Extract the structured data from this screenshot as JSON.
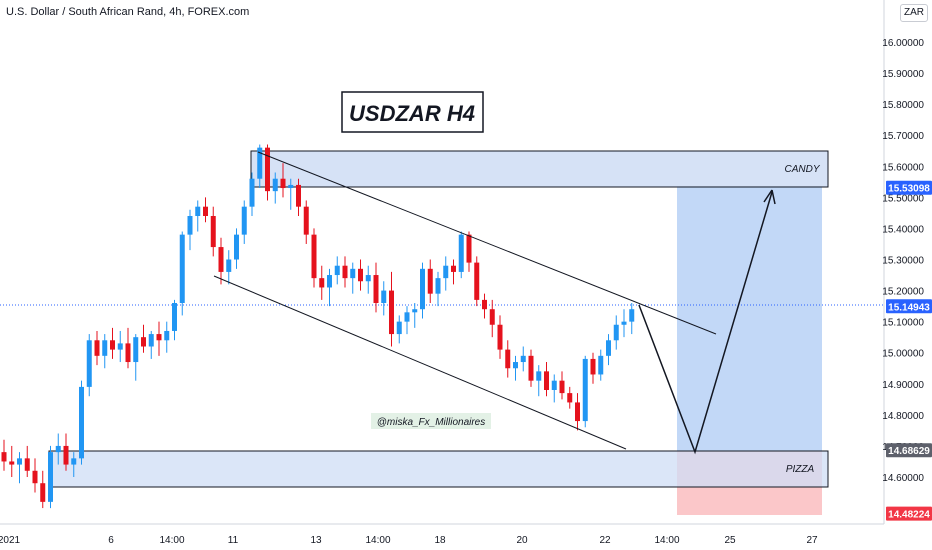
{
  "header": {
    "symbol_title": "U.S. Dollar / South African Rand, 4h, FOREX.com"
  },
  "currency_badge": "ZAR",
  "title_box": "USDZAR H4",
  "watermark": "@miska_Fx_Millionaires",
  "zones": {
    "top_label": "CANDY",
    "bottom_label": "PIZZA"
  },
  "colors": {
    "bull": "#2196f3",
    "bear": "#e5121d",
    "zone_fill": "#cfddf5",
    "target_fill": "#c2d8f7",
    "stop_fill": "#fbc7c9",
    "price_line": "#2962ff",
    "level_red": "#f23645",
    "level_gray": "#5d606b"
  },
  "chart_data": {
    "type": "candlestick",
    "title": "U.S. Dollar / South African Rand, 4h, FOREX.com",
    "ylim": [
      14.5,
      16.1
    ],
    "y_ticks": [
      "16.00000",
      "15.90000",
      "15.80000",
      "15.70000",
      "15.60000",
      "15.50000",
      "15.40000",
      "15.30000",
      "15.20000",
      "15.10000",
      "15.00000",
      "14.90000",
      "14.80000",
      "14.70000",
      "14.60000"
    ],
    "x_ticks": [
      "2021",
      "6",
      "14:00",
      "11",
      "13",
      "14:00",
      "18",
      "20",
      "22",
      "14:00",
      "25",
      "27"
    ],
    "price_labels": [
      {
        "value": "15.53098",
        "style": "blue"
      },
      {
        "value": "15.14943",
        "style": "blue"
      },
      {
        "value": "14.68629",
        "style": "gray"
      },
      {
        "value": "14.48224",
        "style": "red"
      }
    ],
    "candles": [
      [
        14.68,
        14.72,
        14.62,
        14.65
      ],
      [
        14.65,
        14.7,
        14.6,
        14.64
      ],
      [
        14.64,
        14.68,
        14.58,
        14.66
      ],
      [
        14.66,
        14.7,
        14.6,
        14.62
      ],
      [
        14.62,
        14.66,
        14.55,
        14.58
      ],
      [
        14.58,
        14.62,
        14.5,
        14.52
      ],
      [
        14.52,
        14.7,
        14.5,
        14.68
      ],
      [
        14.68,
        14.74,
        14.64,
        14.7
      ],
      [
        14.7,
        14.74,
        14.62,
        14.64
      ],
      [
        14.64,
        14.68,
        14.6,
        14.66
      ],
      [
        14.66,
        14.91,
        14.64,
        14.89
      ],
      [
        14.89,
        15.06,
        14.86,
        15.04
      ],
      [
        15.04,
        15.07,
        14.96,
        14.99
      ],
      [
        14.99,
        15.06,
        14.95,
        15.04
      ],
      [
        15.04,
        15.08,
        14.98,
        15.01
      ],
      [
        15.01,
        15.07,
        14.97,
        15.03
      ],
      [
        15.03,
        15.08,
        14.95,
        14.97
      ],
      [
        14.97,
        15.06,
        14.91,
        15.05
      ],
      [
        15.05,
        15.09,
        15.0,
        15.02
      ],
      [
        15.02,
        15.07,
        14.98,
        15.06
      ],
      [
        15.06,
        15.1,
        14.99,
        15.04
      ],
      [
        15.04,
        15.1,
        15.0,
        15.07
      ],
      [
        15.07,
        15.17,
        15.04,
        15.16
      ],
      [
        15.16,
        15.39,
        15.12,
        15.38
      ],
      [
        15.38,
        15.46,
        15.33,
        15.44
      ],
      [
        15.44,
        15.49,
        15.39,
        15.47
      ],
      [
        15.47,
        15.5,
        15.42,
        15.44
      ],
      [
        15.44,
        15.47,
        15.31,
        15.34
      ],
      [
        15.34,
        15.37,
        15.22,
        15.26
      ],
      [
        15.26,
        15.33,
        15.22,
        15.3
      ],
      [
        15.3,
        15.4,
        15.27,
        15.38
      ],
      [
        15.38,
        15.49,
        15.35,
        15.47
      ],
      [
        15.47,
        15.58,
        15.44,
        15.56
      ],
      [
        15.56,
        15.67,
        15.53,
        15.66
      ],
      [
        15.66,
        15.67,
        15.49,
        15.52
      ],
      [
        15.52,
        15.58,
        15.48,
        15.56
      ],
      [
        15.56,
        15.61,
        15.5,
        15.53
      ],
      [
        15.53,
        15.56,
        15.46,
        15.54
      ],
      [
        15.54,
        15.56,
        15.44,
        15.47
      ],
      [
        15.47,
        15.49,
        15.35,
        15.38
      ],
      [
        15.38,
        15.4,
        15.21,
        15.24
      ],
      [
        15.24,
        15.28,
        15.17,
        15.21
      ],
      [
        15.21,
        15.27,
        15.15,
        15.25
      ],
      [
        15.25,
        15.31,
        15.22,
        15.28
      ],
      [
        15.28,
        15.31,
        15.21,
        15.24
      ],
      [
        15.24,
        15.29,
        15.19,
        15.27
      ],
      [
        15.27,
        15.3,
        15.2,
        15.23
      ],
      [
        15.23,
        15.28,
        15.19,
        15.25
      ],
      [
        15.25,
        15.29,
        15.13,
        15.16
      ],
      [
        15.16,
        15.23,
        15.12,
        15.2
      ],
      [
        15.2,
        15.26,
        15.02,
        15.06
      ],
      [
        15.06,
        15.12,
        15.03,
        15.1
      ],
      [
        15.1,
        15.15,
        15.06,
        15.13
      ],
      [
        15.13,
        15.16,
        15.08,
        15.14
      ],
      [
        15.14,
        15.29,
        15.11,
        15.27
      ],
      [
        15.27,
        15.3,
        15.16,
        15.19
      ],
      [
        15.19,
        15.26,
        15.15,
        15.24
      ],
      [
        15.24,
        15.31,
        15.2,
        15.28
      ],
      [
        15.28,
        15.3,
        15.22,
        15.26
      ],
      [
        15.26,
        15.39,
        15.24,
        15.38
      ],
      [
        15.38,
        15.39,
        15.26,
        15.29
      ],
      [
        15.29,
        15.31,
        15.15,
        15.17
      ],
      [
        15.17,
        15.19,
        15.11,
        15.14
      ],
      [
        15.14,
        15.17,
        15.05,
        15.09
      ],
      [
        15.09,
        15.12,
        14.98,
        15.01
      ],
      [
        15.01,
        15.04,
        14.92,
        14.95
      ],
      [
        14.95,
        14.99,
        14.91,
        14.97
      ],
      [
        14.97,
        15.02,
        14.94,
        14.99
      ],
      [
        14.99,
        15.01,
        14.89,
        14.91
      ],
      [
        14.91,
        14.96,
        14.86,
        14.94
      ],
      [
        14.94,
        14.97,
        14.86,
        14.88
      ],
      [
        14.88,
        14.93,
        14.84,
        14.91
      ],
      [
        14.91,
        14.94,
        14.85,
        14.87
      ],
      [
        14.87,
        14.89,
        14.82,
        14.84
      ],
      [
        14.84,
        14.87,
        14.75,
        14.78
      ],
      [
        14.78,
        14.99,
        14.76,
        14.98
      ],
      [
        14.98,
        15.0,
        14.9,
        14.93
      ],
      [
        14.93,
        15.01,
        14.91,
        14.99
      ],
      [
        14.99,
        15.06,
        14.96,
        15.04
      ],
      [
        15.04,
        15.12,
        15.01,
        15.09
      ],
      [
        15.09,
        15.14,
        15.05,
        15.1
      ],
      [
        15.1,
        15.16,
        15.06,
        15.14
      ]
    ]
  }
}
